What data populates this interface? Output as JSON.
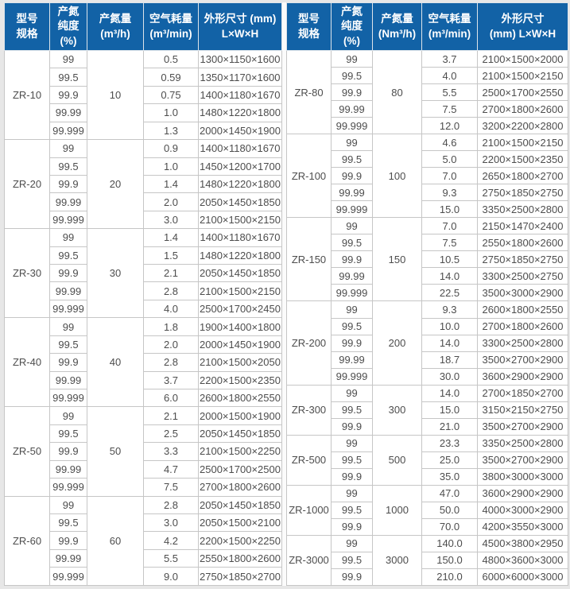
{
  "colors": {
    "header_bg": "#1262a6",
    "header_text": "#ffffff",
    "cell_text": "#4d4d4d",
    "border": "#c6c6c6",
    "page_bg": "#e7e7e7"
  },
  "left_table": {
    "headers": [
      [
        "型号",
        "规格"
      ],
      [
        "产氮",
        "纯度",
        "(%)"
      ],
      [
        "产氮量",
        "(m³/h)"
      ],
      [
        "空气耗量",
        "(m³/min)"
      ],
      [
        "外形尺寸 (mm)",
        "L×W×H"
      ]
    ],
    "groups": [
      {
        "model": "ZR-10",
        "output": "10",
        "rows": [
          [
            "99",
            "0.5",
            "1300×1150×1600"
          ],
          [
            "99.5",
            "0.59",
            "1350×1170×1600"
          ],
          [
            "99.9",
            "0.75",
            "1400×1180×1670"
          ],
          [
            "99.99",
            "1.0",
            "1480×1220×1800"
          ],
          [
            "99.999",
            "1.3",
            "2000×1450×1900"
          ]
        ]
      },
      {
        "model": "ZR-20",
        "output": "20",
        "rows": [
          [
            "99",
            "0.9",
            "1400×1180×1670"
          ],
          [
            "99.5",
            "1.0",
            "1450×1200×1700"
          ],
          [
            "99.9",
            "1.4",
            "1480×1220×1800"
          ],
          [
            "99.99",
            "2.0",
            "2050×1450×1850"
          ],
          [
            "99.999",
            "3.0",
            "2100×1500×2150"
          ]
        ]
      },
      {
        "model": "ZR-30",
        "output": "30",
        "rows": [
          [
            "99",
            "1.4",
            "1400×1180×1670"
          ],
          [
            "99.5",
            "1.5",
            "1480×1220×1800"
          ],
          [
            "99.9",
            "2.1",
            "2050×1450×1850"
          ],
          [
            "99.99",
            "2.8",
            "2100×1500×2150"
          ],
          [
            "99.999",
            "4.0",
            "2500×1700×2450"
          ]
        ]
      },
      {
        "model": "ZR-40",
        "output": "40",
        "rows": [
          [
            "99",
            "1.8",
            "1900×1400×1800"
          ],
          [
            "99.5",
            "2.0",
            "2000×1450×1900"
          ],
          [
            "99.9",
            "2.8",
            "2100×1500×2050"
          ],
          [
            "99.99",
            "3.7",
            "2200×1500×2350"
          ],
          [
            "99.999",
            "6.0",
            "2600×1800×2550"
          ]
        ]
      },
      {
        "model": "ZR-50",
        "output": "50",
        "rows": [
          [
            "99",
            "2.1",
            "2000×1500×1900"
          ],
          [
            "99.5",
            "2.5",
            "2050×1450×1850"
          ],
          [
            "99.9",
            "3.3",
            "2100×1500×2250"
          ],
          [
            "99.99",
            "4.7",
            "2500×1700×2500"
          ],
          [
            "99.999",
            "7.5",
            "2700×1800×2600"
          ]
        ]
      },
      {
        "model": "ZR-60",
        "output": "60",
        "rows": [
          [
            "99",
            "2.8",
            "2050×1450×1850"
          ],
          [
            "99.5",
            "3.0",
            "2050×1500×2100"
          ],
          [
            "99.9",
            "4.2",
            "2200×1500×2250"
          ],
          [
            "99.99",
            "5.5",
            "2550×1800×2600"
          ],
          [
            "99.999",
            "9.0",
            "2750×1850×2700"
          ]
        ]
      }
    ]
  },
  "right_table": {
    "headers": [
      [
        "型号",
        "规格"
      ],
      [
        "产氮",
        "纯度",
        "(%)"
      ],
      [
        "产氮量",
        "(Nm³/h)"
      ],
      [
        "空气耗量",
        "(m³/min)"
      ],
      [
        "外形尺寸",
        "(mm) L×W×H"
      ]
    ],
    "groups": [
      {
        "model": "ZR-80",
        "output": "80",
        "rows": [
          [
            "99",
            "3.7",
            "2100×1500×2000"
          ],
          [
            "99.5",
            "4.0",
            "2100×1500×2150"
          ],
          [
            "99.9",
            "5.5",
            "2500×1700×2550"
          ],
          [
            "99.99",
            "7.5",
            "2700×1800×2600"
          ],
          [
            "99.999",
            "12.0",
            "3200×2200×2800"
          ]
        ]
      },
      {
        "model": "ZR-100",
        "output": "100",
        "rows": [
          [
            "99",
            "4.6",
            "2100×1500×2150"
          ],
          [
            "99.5",
            "5.0",
            "2200×1500×2350"
          ],
          [
            "99.9",
            "7.0",
            "2650×1800×2700"
          ],
          [
            "99.99",
            "9.3",
            "2750×1850×2750"
          ],
          [
            "99.999",
            "15.0",
            "3350×2500×2800"
          ]
        ]
      },
      {
        "model": "ZR-150",
        "output": "150",
        "rows": [
          [
            "99",
            "7.0",
            "2150×1470×2400"
          ],
          [
            "99.5",
            "7.5",
            "2550×1800×2600"
          ],
          [
            "99.9",
            "10.5",
            "2750×1850×2750"
          ],
          [
            "99.99",
            "14.0",
            "3300×2500×2750"
          ],
          [
            "99.999",
            "22.5",
            "3500×3000×2900"
          ]
        ]
      },
      {
        "model": "ZR-200",
        "output": "200",
        "rows": [
          [
            "99",
            "9.3",
            "2600×1800×2550"
          ],
          [
            "99.5",
            "10.0",
            "2700×1800×2600"
          ],
          [
            "99.9",
            "14.0",
            "3300×2500×2800"
          ],
          [
            "99.99",
            "18.7",
            "3500×2700×2900"
          ],
          [
            "99.999",
            "30.0",
            "3600×2900×2900"
          ]
        ]
      },
      {
        "model": "ZR-300",
        "output": "300",
        "rows": [
          [
            "99",
            "14.0",
            "2700×1850×2700"
          ],
          [
            "99.5",
            "15.0",
            "3150×2150×2750"
          ],
          [
            "99.9",
            "21.0",
            "3500×2700×2900"
          ]
        ]
      },
      {
        "model": "ZR-500",
        "output": "500",
        "rows": [
          [
            "99",
            "23.3",
            "3350×2500×2800"
          ],
          [
            "99.5",
            "25.0",
            "3500×2700×2900"
          ],
          [
            "99.9",
            "35.0",
            "3800×3000×3000"
          ]
        ]
      },
      {
        "model": "ZR-1000",
        "output": "1000",
        "rows": [
          [
            "99",
            "47.0",
            "3600×2900×2900"
          ],
          [
            "99.5",
            "50.0",
            "4000×3000×2900"
          ],
          [
            "99.9",
            "70.0",
            "4200×3550×3000"
          ]
        ]
      },
      {
        "model": "ZR-3000",
        "output": "3000",
        "rows": [
          [
            "99",
            "140.0",
            "4500×3800×2950"
          ],
          [
            "99.5",
            "150.0",
            "4800×3600×3000"
          ],
          [
            "99.9",
            "210.0",
            "6000×6000×3000"
          ]
        ]
      }
    ]
  }
}
